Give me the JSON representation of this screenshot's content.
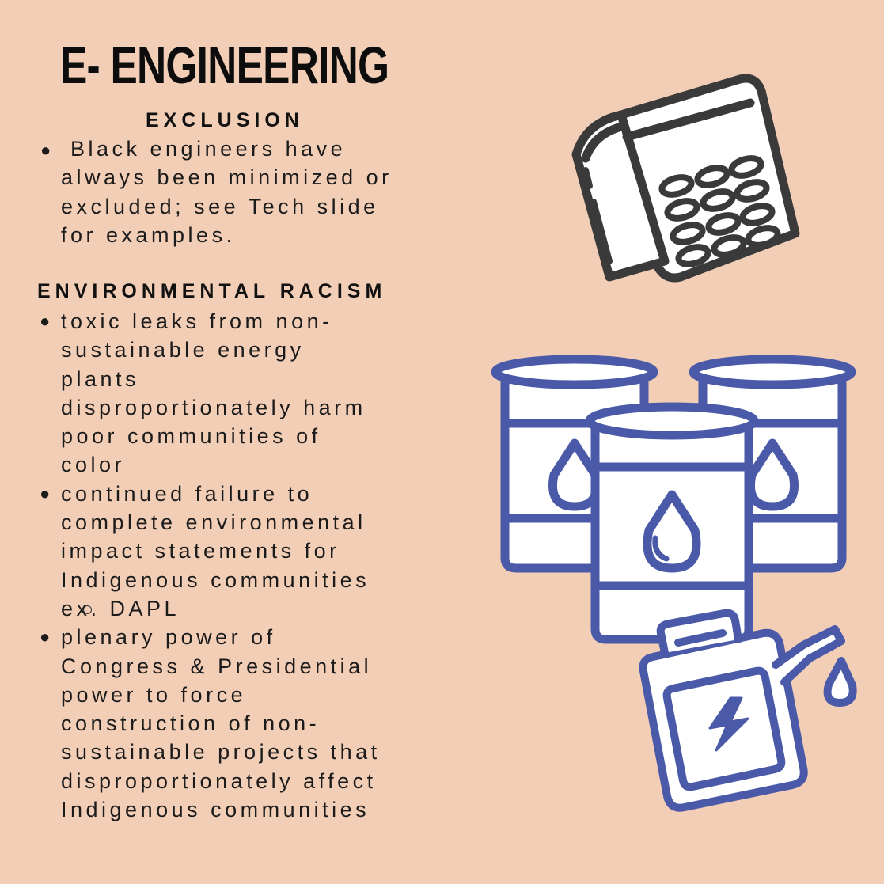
{
  "title": "E- ENGINEERING",
  "sections": {
    "exclusion": {
      "heading": "EXCLUSION",
      "items": [
        {
          "lines": [
            "Black engineers have",
            "always been minimized or",
            "excluded; see Tech slide",
            "for examples."
          ]
        }
      ]
    },
    "environmental": {
      "heading": "ENVIRONMENTAL RACISM",
      "items": [
        {
          "lines": [
            "toxic leaks from non-",
            "sustainable energy",
            "plants",
            "disproportionately harm",
            "poor communities of",
            "color"
          ]
        },
        {
          "lines": [
            "continued failure to",
            "complete environmental",
            "impact statements for",
            "Indigenous communities"
          ]
        },
        {
          "sub": "ex. DAPL"
        },
        {
          "lines": [
            "plenary power of",
            "Congress & Presidential",
            "power to force",
            "construction of non-",
            "sustainable projects that",
            "disproportionately affect",
            "Indigenous communities"
          ]
        }
      ]
    }
  },
  "icons": {
    "calculator": "calculator-icon",
    "barrels": "oil-barrels-icon",
    "canister": "fuel-canister-icon"
  },
  "colors": {
    "background": "#f3ceb6",
    "icon_dark": "#3a3a3a",
    "icon_blue": "#4a5aa8"
  }
}
